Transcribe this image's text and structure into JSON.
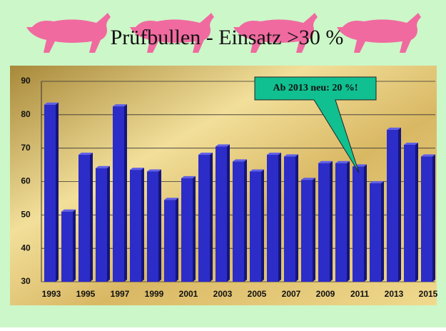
{
  "chart_data": {
    "type": "bar",
    "title": "Prüfbullen - Einsatz >30 %",
    "annotation": "Ab 2013 neu: 20 %!",
    "categories": [
      "1993",
      null,
      "1995",
      null,
      "1997",
      null,
      "1999",
      null,
      "2001",
      null,
      "2003",
      null,
      "2005",
      null,
      "2007",
      null,
      "2009",
      null,
      "2011",
      null,
      "2013",
      null,
      "2015"
    ],
    "values": [
      83,
      51,
      68,
      64,
      82.5,
      63.5,
      63,
      54.5,
      61,
      68,
      70.5,
      66,
      63,
      68,
      67.5,
      60.5,
      65.5,
      65.5,
      64.5,
      59.5,
      75.5,
      71,
      67.5
    ],
    "color": "#2c2cc8",
    "ylim": [
      30,
      90
    ],
    "yticks": [
      30,
      40,
      50,
      60,
      70,
      80,
      90
    ],
    "grid": true
  }
}
